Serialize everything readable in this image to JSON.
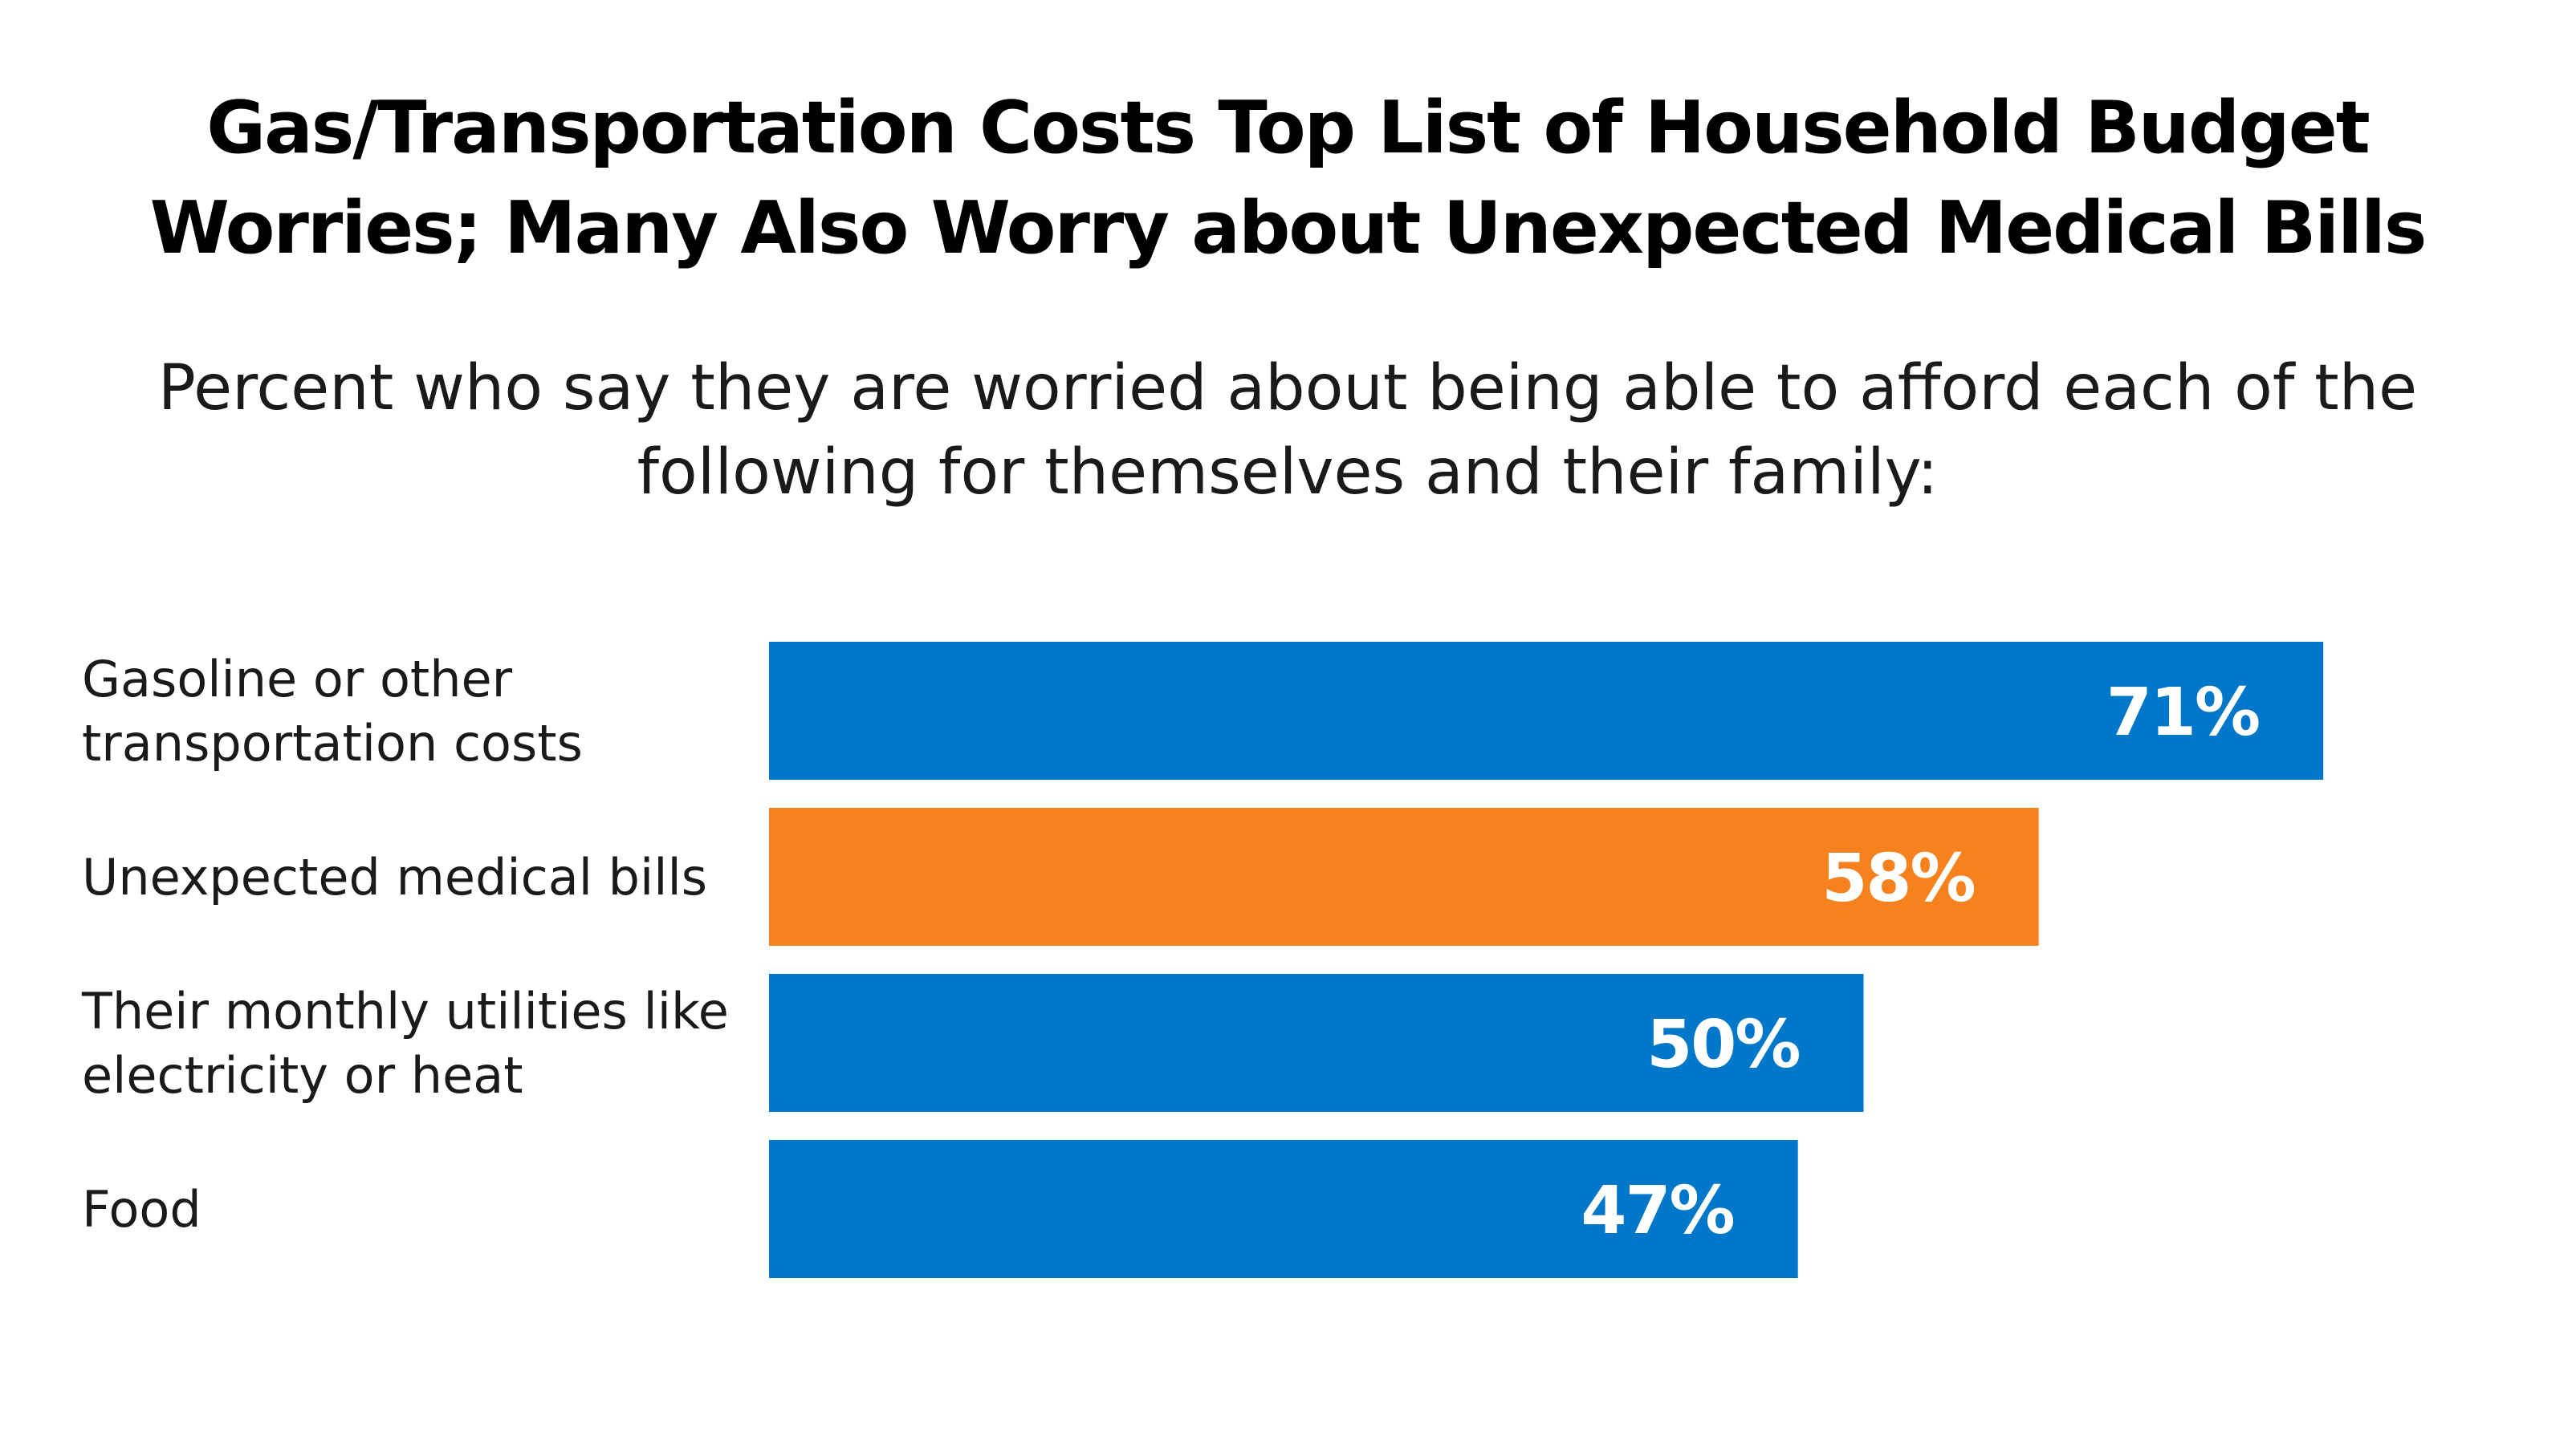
{
  "title": {
    "lines": [
      "Gas/Transportation Costs Top List of Household Budget",
      "Worries; Many Also Worry about Unexpected Medical Bills"
    ]
  },
  "subtitle": {
    "lines": [
      "Percent who say they are worried about being able to afford each of the",
      "following for themselves and their family:"
    ]
  },
  "colors": {
    "default_bar": "#0077C8",
    "highlight_bar": "#F5821F",
    "value_text": "#FFFFFF",
    "text": "#1A1A1A"
  },
  "chart_data": {
    "type": "bar",
    "orientation": "horizontal",
    "title": "Gas/Transportation Costs Top List of Household Budget Worries; Many Also Worry about Unexpected Medical Bills",
    "subtitle": "Percent who say they are worried about being able to afford each of the following for themselves and their family:",
    "xlabel": "",
    "ylabel": "",
    "xlim": [
      0,
      100
    ],
    "grid": false,
    "legend": "none",
    "categories": [
      [
        "Gasoline or other",
        "transportation costs"
      ],
      [
        "Unexpected medical bills"
      ],
      [
        "Their monthly utilities like",
        "electricity or heat"
      ],
      [
        "Food"
      ]
    ],
    "values": [
      71,
      58,
      50,
      47
    ],
    "value_labels": [
      "71%",
      "58%",
      "50%",
      "47%"
    ],
    "highlight": [
      false,
      true,
      false,
      false
    ]
  }
}
